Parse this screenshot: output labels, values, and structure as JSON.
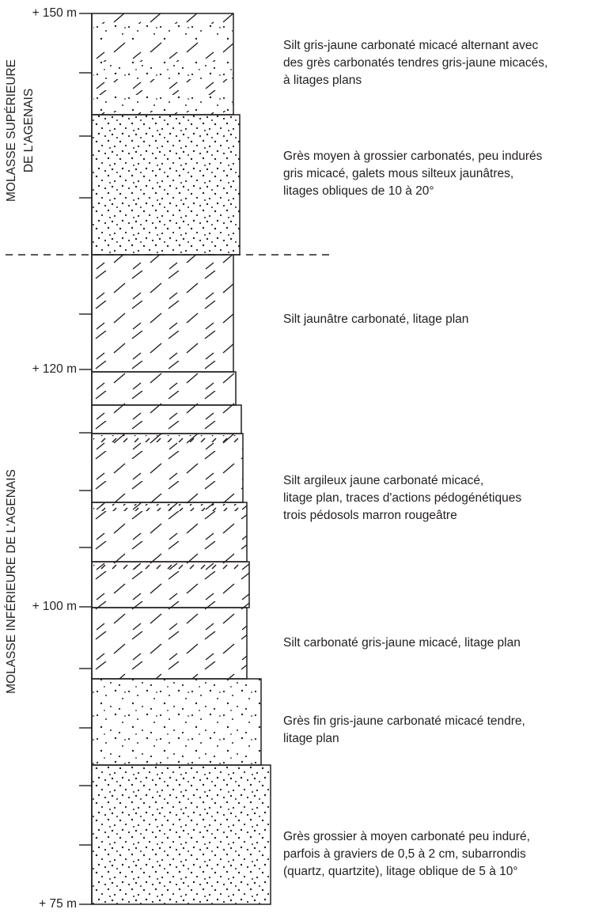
{
  "scale_labels": [
    "+ 150 m",
    "+ 120 m",
    "+ 100 m",
    "+ 75 m"
  ],
  "units": [
    {
      "lines": [
        "MOLASSE SUPÉRIEURE",
        "DE L'AGENAIS"
      ]
    },
    {
      "lines": [
        "MOLASSE INFÉRIEURE DE L'AGENAIS"
      ]
    }
  ],
  "descriptions": [
    [
      "Silt gris-jaune carbonaté micacé alternant avec",
      "des grès carbonatés tendres gris-jaune micacés,",
      "à litages plans"
    ],
    [
      "Grès moyen à grossier carbonatés, peu indurés",
      "gris micacé, galets mous silteux jaunâtres,",
      "litages obliques de 10 à 20°"
    ],
    [
      "Silt jaunâtre carbonaté, litage plan"
    ],
    [
      "Silt argileux jaune carbonaté micacé,",
      "litage plan, traces d'actions pédogénétiques",
      "trois pédosols marron rougeâtre"
    ],
    [
      "Silt carbonaté gris-jaune micacé, litage plan"
    ],
    [
      "Grès fin gris-jaune carbonaté micacé tendre,",
      "litage plan"
    ],
    [
      "Grès grossier à moyen carbonaté peu induré,",
      "parfois à graviers de 0,5 à 2 cm, subarrondis",
      "(quartz, quartzite), litage oblique de 5 à 10°"
    ]
  ]
}
